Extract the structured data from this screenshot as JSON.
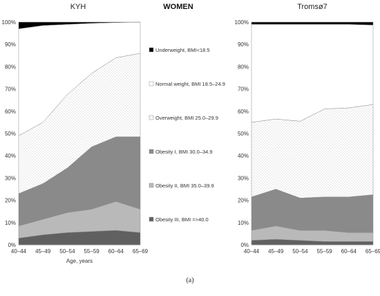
{
  "header": {
    "left_panel_title": "KYH",
    "center_title": "WOMEN",
    "right_panel_title": "Tromsø7"
  },
  "caption": "(a)",
  "colors": {
    "underweight": "#000000",
    "normal": "#ffffff",
    "overweight": "#f1f1f1",
    "obesity1": "#8a8a8a",
    "obesity2": "#b9b9b9",
    "obesity3": "#606060",
    "outline": "#8c8c8c",
    "grid": "#d9d9d9"
  },
  "legend": [
    {
      "key": "underweight",
      "label": "Underweight, BMI<18.5"
    },
    {
      "key": "normal",
      "label": "Normal weight, BMI 18.5–24.9"
    },
    {
      "key": "overweight",
      "label": "Overweight, BMI 25.0–29.9"
    },
    {
      "key": "obesity1",
      "label": "Obesity I, BMI 30.0–34.9"
    },
    {
      "key": "obesity2",
      "label": "Obesity II, BMI 35.0–39.9"
    },
    {
      "key": "obesity3",
      "label": "Obesity III, BMI =>40.0"
    }
  ],
  "chart_data": [
    {
      "type": "area",
      "title": "KYH",
      "xlabel": "Age, years",
      "ylabel": "",
      "ylim": [
        0,
        100
      ],
      "yticks": [
        "0%",
        "10%",
        "20%",
        "30%",
        "40%",
        "50%",
        "60%",
        "70%",
        "80%",
        "90%",
        "100%"
      ],
      "categories": [
        "40–44",
        "45–49",
        "50–54",
        "55–59",
        "60–64",
        "65–69"
      ],
      "stacked_percent": true,
      "series": [
        {
          "name": "Obesity III, BMI =>40.0",
          "key": "obesity3",
          "values": [
            3.0,
            4.5,
            5.5,
            6.0,
            6.5,
            5.5
          ]
        },
        {
          "name": "Obesity II, BMI 35.0–39.9",
          "key": "obesity2",
          "values": [
            5.5,
            7.0,
            9.0,
            10.0,
            13.0,
            10.5
          ]
        },
        {
          "name": "Obesity I, BMI 30.0–34.9",
          "key": "obesity1",
          "values": [
            14.5,
            16.0,
            20.0,
            28.0,
            29.0,
            32.5
          ]
        },
        {
          "name": "Overweight, BMI 25.0–29.9",
          "key": "overweight",
          "values": [
            26.0,
            27.5,
            33.0,
            33.0,
            35.5,
            37.5
          ]
        },
        {
          "name": "Normal weight, BMI 18.5–24.9",
          "key": "normal",
          "values": [
            48.0,
            43.5,
            31.5,
            22.5,
            15.8,
            14.0
          ]
        },
        {
          "name": "Underweight, BMI<18.5",
          "key": "underweight",
          "values": [
            3.0,
            1.5,
            1.0,
            0.5,
            0.2,
            0.0
          ]
        }
      ]
    },
    {
      "type": "area",
      "title": "Tromsø7",
      "xlabel": "",
      "ylabel": "",
      "ylim": [
        0,
        100
      ],
      "yticks": [
        "0%",
        "10%",
        "20%",
        "30%",
        "40%",
        "50%",
        "60%",
        "70%",
        "80%",
        "90%",
        "100%"
      ],
      "categories": [
        "40–44",
        "45–49",
        "50–54",
        "55–59",
        "60–64",
        "65–69"
      ],
      "stacked_percent": true,
      "series": [
        {
          "name": "Obesity III, BMI =>40.0",
          "key": "obesity3",
          "values": [
            2.0,
            2.5,
            2.0,
            1.5,
            1.5,
            1.5
          ]
        },
        {
          "name": "Obesity II, BMI 35.0–39.9",
          "key": "obesity2",
          "values": [
            4.5,
            6.0,
            4.5,
            5.0,
            4.0,
            4.0
          ]
        },
        {
          "name": "Obesity I, BMI 30.0–34.9",
          "key": "obesity1",
          "values": [
            15.0,
            16.5,
            14.5,
            15.0,
            16.0,
            17.0
          ]
        },
        {
          "name": "Overweight, BMI 25.0–29.9",
          "key": "overweight",
          "values": [
            33.5,
            31.5,
            34.5,
            39.5,
            40.0,
            40.5
          ]
        },
        {
          "name": "Normal weight, BMI 18.5–24.9",
          "key": "normal",
          "values": [
            44.0,
            42.5,
            43.5,
            38.0,
            37.5,
            35.7
          ]
        },
        {
          "name": "Underweight, BMI<18.5",
          "key": "underweight",
          "values": [
            1.0,
            1.0,
            1.0,
            1.0,
            1.0,
            1.3
          ]
        }
      ]
    }
  ]
}
